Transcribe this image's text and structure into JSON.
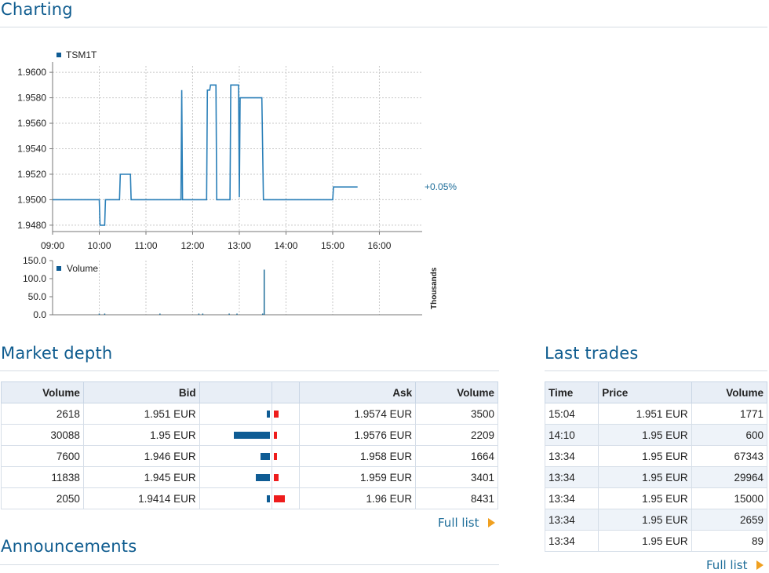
{
  "sections": {
    "charting": "Charting",
    "market_depth": "Market depth",
    "last_trades": "Last trades",
    "announcements": "Announcements"
  },
  "chart_data": [
    {
      "type": "line",
      "series": [
        {
          "name": "TSM1T",
          "points": [
            [
              "09:00",
              1.95
            ],
            [
              "10:00",
              1.95
            ],
            [
              "10:01",
              1.948
            ],
            [
              "10:07",
              1.948
            ],
            [
              "10:08",
              1.95
            ],
            [
              "10:26",
              1.95
            ],
            [
              "10:27",
              1.952
            ],
            [
              "10:40",
              1.952
            ],
            [
              "10:41",
              1.95
            ],
            [
              "11:45",
              1.95
            ],
            [
              "11:46",
              1.9586
            ],
            [
              "11:47",
              1.95
            ],
            [
              "12:18",
              1.95
            ],
            [
              "12:19",
              1.9586
            ],
            [
              "12:22",
              1.9586
            ],
            [
              "12:23",
              1.959
            ],
            [
              "12:30",
              1.959
            ],
            [
              "12:31",
              1.95
            ],
            [
              "12:48",
              1.95
            ],
            [
              "12:49",
              1.959
            ],
            [
              "12:59",
              1.959
            ],
            [
              "13:00",
              1.9502
            ],
            [
              "13:01",
              1.958
            ],
            [
              "13:29",
              1.958
            ],
            [
              "13:31",
              1.95
            ],
            [
              "15:00",
              1.95
            ],
            [
              "15:01",
              1.951
            ],
            [
              "15:32",
              1.951
            ]
          ]
        }
      ],
      "x_ticks": [
        "09:00",
        "10:00",
        "11:00",
        "12:00",
        "13:00",
        "14:00",
        "15:00",
        "16:00"
      ],
      "y_ticks": [
        "1.9480",
        "1.9500",
        "1.9520",
        "1.9540",
        "1.9560",
        "1.9580",
        "1.9600"
      ],
      "ylim": [
        1.9475,
        1.9605
      ],
      "xlim": [
        "09:00",
        "16:55"
      ],
      "change_label": "+0.05%",
      "grid": true,
      "legend": "top-left"
    },
    {
      "type": "bar",
      "series": [
        {
          "name": "Volume",
          "points": [
            [
              "10:00",
              0.4
            ],
            [
              "10:07",
              0.4
            ],
            [
              "11:18",
              0.4
            ],
            [
              "12:08",
              0.4
            ],
            [
              "12:13",
              0.4
            ],
            [
              "12:47",
              0.4
            ],
            [
              "12:57",
              0.4
            ],
            [
              "13:30",
              0.5
            ],
            [
              "13:32",
              125
            ]
          ]
        }
      ],
      "y_ticks": [
        "0.0",
        "50.0",
        "100.0",
        "150.0"
      ],
      "ylim": [
        0,
        150
      ],
      "ylabel": "Thousands",
      "legend": "top-left"
    }
  ],
  "market_depth": {
    "headers": [
      "Volume",
      "Bid",
      "",
      "",
      "Ask",
      "Volume"
    ],
    "bid_max_volume": 30088,
    "ask_max_volume": 8431,
    "rows": [
      {
        "bid_volume": "2618",
        "bid": "1.951 EUR",
        "ask": "1.9574 EUR",
        "ask_volume": "3500",
        "bid_v": 2618,
        "ask_v": 3500
      },
      {
        "bid_volume": "30088",
        "bid": "1.95 EUR",
        "ask": "1.9576 EUR",
        "ask_volume": "2209",
        "bid_v": 30088,
        "ask_v": 2209
      },
      {
        "bid_volume": "7600",
        "bid": "1.946 EUR",
        "ask": "1.958 EUR",
        "ask_volume": "1664",
        "bid_v": 7600,
        "ask_v": 1664
      },
      {
        "bid_volume": "11838",
        "bid": "1.945 EUR",
        "ask": "1.959 EUR",
        "ask_volume": "3401",
        "bid_v": 11838,
        "ask_v": 3401
      },
      {
        "bid_volume": "2050",
        "bid": "1.9414 EUR",
        "ask": "1.96 EUR",
        "ask_volume": "8431",
        "bid_v": 2050,
        "ask_v": 8431
      }
    ],
    "full_list": "Full list"
  },
  "last_trades": {
    "headers": [
      "Time",
      "Price",
      "Volume"
    ],
    "rows": [
      {
        "time": "15:04",
        "price": "1.951 EUR",
        "volume": "1771"
      },
      {
        "time": "14:10",
        "price": "1.95 EUR",
        "volume": "600"
      },
      {
        "time": "13:34",
        "price": "1.95 EUR",
        "volume": "67343"
      },
      {
        "time": "13:34",
        "price": "1.95 EUR",
        "volume": "29964"
      },
      {
        "time": "13:34",
        "price": "1.95 EUR",
        "volume": "15000"
      },
      {
        "time": "13:34",
        "price": "1.95 EUR",
        "volume": "2659"
      },
      {
        "time": "13:34",
        "price": "1.95 EUR",
        "volume": "89"
      }
    ],
    "full_list": "Full list"
  },
  "colors": {
    "accent": "#0f5c8f",
    "line": "#2a7fb8",
    "bid_bar": "#0f5c94",
    "ask_bar": "#ee1c1c",
    "arrow": "#f0a020"
  }
}
